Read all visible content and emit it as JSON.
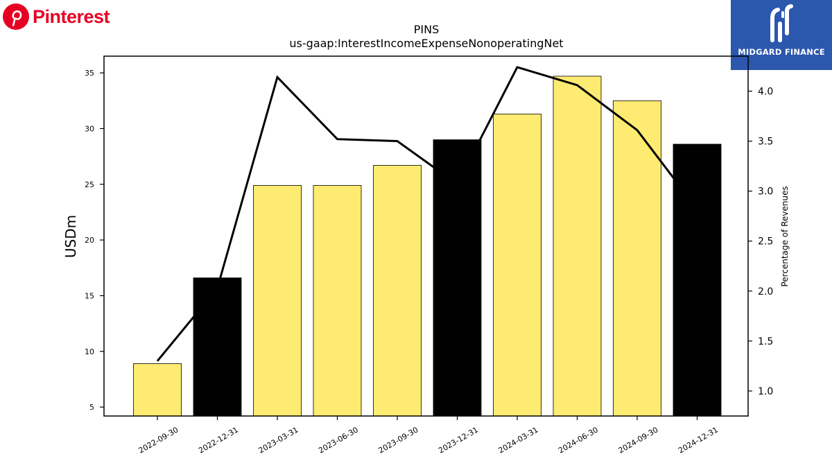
{
  "logos": {
    "left_brand_name": "Pinterest",
    "right_brand_name": "MIDGARD FINANCE",
    "left_brand_color": "#e60023",
    "right_brand_color": "#2b57ad"
  },
  "chart_data": {
    "type": "bar",
    "title": "PINS",
    "subtitle": "us-gaap:InterestIncomeExpenseNonoperatingNet",
    "ylabel": "USDm",
    "y2label": "Percentage of Revenues",
    "categories": [
      "2022-09-30",
      "2022-12-31",
      "2023-03-31",
      "2023-06-30",
      "2023-09-30",
      "2023-12-31",
      "2024-03-31",
      "2024-06-30",
      "2024-09-30",
      "2024-12-31"
    ],
    "series": [
      {
        "type": "bar",
        "values": [
          8.9,
          16.6,
          24.9,
          24.9,
          26.7,
          29.0,
          31.3,
          34.7,
          32.5,
          28.6
        ],
        "colors": [
          "#fdeb72",
          "#000000",
          "#fdeb72",
          "#fdeb72",
          "#fdeb72",
          "#000000",
          "#fdeb72",
          "#fdeb72",
          "#fdeb72",
          "#000000"
        ]
      },
      {
        "type": "line",
        "axis": "right",
        "color": "#000000",
        "values": [
          1.3,
          2.03,
          4.14,
          3.52,
          3.5,
          3.07,
          4.24,
          4.06,
          3.61,
          2.82
        ]
      }
    ],
    "ylim": [
      4.2,
      36.5
    ],
    "y2lim": [
      0.75,
      4.35
    ],
    "yticks": [
      5,
      10,
      15,
      20,
      25,
      30,
      35
    ],
    "y2ticks": [
      "1.0",
      "1.5",
      "2.0",
      "2.5",
      "3.0",
      "3.5",
      "4.0"
    ],
    "grid": false,
    "legend": "none"
  }
}
